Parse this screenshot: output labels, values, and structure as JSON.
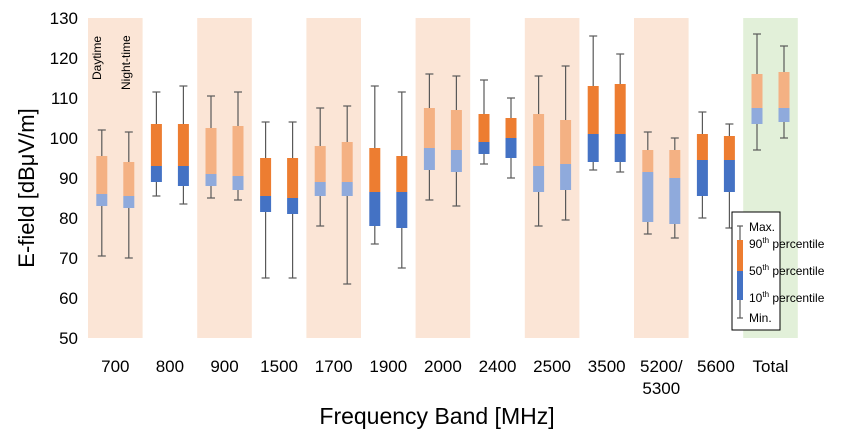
{
  "chart_data": {
    "type": "boxplot",
    "xlabel": "Frequency Band [MHz]",
    "ylabel": "E-field [dBμV/m]",
    "ylim": [
      50,
      130
    ],
    "yticks": [
      50,
      60,
      70,
      80,
      90,
      100,
      110,
      120,
      130
    ],
    "grid": false,
    "series_labels": [
      "Daytime",
      "Night-time"
    ],
    "colors": {
      "upper_dark": "#ED7D31",
      "upper_light": "#F4B183",
      "lower_dark": "#4472C4",
      "lower_light": "#8FAADC",
      "whisker": "#595959",
      "shade_pink": "#FBE5D6",
      "shade_green": "#E2F0D9"
    },
    "groups": [
      {
        "label": "700",
        "shade": "pink",
        "light": true,
        "day": {
          "min": 70.5,
          "p10": 83,
          "p50": 86,
          "p90": 95.5,
          "max": 102
        },
        "night": {
          "min": 70,
          "p10": 82.5,
          "p50": 85.5,
          "p90": 94,
          "max": 101.5
        }
      },
      {
        "label": "800",
        "shade": "none",
        "light": false,
        "day": {
          "min": 85.5,
          "p10": 89,
          "p50": 93,
          "p90": 103.5,
          "max": 111.5
        },
        "night": {
          "min": 83.5,
          "p10": 88,
          "p50": 93,
          "p90": 103.5,
          "max": 113
        }
      },
      {
        "label": "900",
        "shade": "pink",
        "light": true,
        "day": {
          "min": 85,
          "p10": 88,
          "p50": 91,
          "p90": 102.5,
          "max": 110.5
        },
        "night": {
          "min": 84.5,
          "p10": 87,
          "p50": 90.5,
          "p90": 103,
          "max": 111.5
        }
      },
      {
        "label": "1500",
        "shade": "none",
        "light": false,
        "day": {
          "min": 65,
          "p10": 81.5,
          "p50": 85.5,
          "p90": 95,
          "max": 104
        },
        "night": {
          "min": 65,
          "p10": 81,
          "p50": 85,
          "p90": 95,
          "max": 104
        }
      },
      {
        "label": "1700",
        "shade": "pink",
        "light": true,
        "day": {
          "min": 78,
          "p10": 85.5,
          "p50": 89,
          "p90": 98,
          "max": 107.5
        },
        "night": {
          "min": 63.5,
          "p10": 85.5,
          "p50": 89,
          "p90": 99,
          "max": 108
        }
      },
      {
        "label": "1900",
        "shade": "none",
        "light": false,
        "day": {
          "min": 73.5,
          "p10": 78,
          "p50": 86.5,
          "p90": 97.5,
          "max": 113
        },
        "night": {
          "min": 67.5,
          "p10": 77.5,
          "p50": 86.5,
          "p90": 95.5,
          "max": 111.5
        }
      },
      {
        "label": "2000",
        "shade": "pink",
        "light": true,
        "day": {
          "min": 84.5,
          "p10": 92,
          "p50": 97.5,
          "p90": 107.5,
          "max": 116
        },
        "night": {
          "min": 83,
          "p10": 91.5,
          "p50": 97,
          "p90": 107,
          "max": 115.5
        }
      },
      {
        "label": "2400",
        "shade": "none",
        "light": false,
        "day": {
          "min": 93.5,
          "p10": 96,
          "p50": 99,
          "p90": 106,
          "max": 114.5
        },
        "night": {
          "min": 90,
          "p10": 95,
          "p50": 100,
          "p90": 105,
          "max": 110
        }
      },
      {
        "label": "2500",
        "shade": "pink",
        "light": true,
        "day": {
          "min": 78,
          "p10": 86.5,
          "p50": 93,
          "p90": 106,
          "max": 115.5
        },
        "night": {
          "min": 79.5,
          "p10": 87,
          "p50": 93.5,
          "p90": 104.5,
          "max": 118
        }
      },
      {
        "label": "3500",
        "shade": "none",
        "light": false,
        "day": {
          "min": 92,
          "p10": 94,
          "p50": 101,
          "p90": 113,
          "max": 125.5
        },
        "night": {
          "min": 91.5,
          "p10": 94,
          "p50": 101,
          "p90": 113.5,
          "max": 121
        }
      },
      {
        "label": "5200/\n5300",
        "shade": "pink",
        "light": true,
        "day": {
          "min": 76,
          "p10": 79,
          "p50": 91.5,
          "p90": 97,
          "max": 101.5
        },
        "night": {
          "min": 75,
          "p10": 78.5,
          "p50": 90,
          "p90": 97,
          "max": 100
        }
      },
      {
        "label": "5600",
        "shade": "none",
        "light": false,
        "day": {
          "min": 80,
          "p10": 85.5,
          "p50": 94.5,
          "p90": 101,
          "max": 106.5
        },
        "night": {
          "min": 77.5,
          "p10": 86.5,
          "p50": 94.5,
          "p90": 100.5,
          "max": 103.5
        }
      },
      {
        "label": "Total",
        "shade": "green",
        "light": true,
        "day": {
          "min": 97,
          "p10": 103.5,
          "p50": 107.5,
          "p90": 116,
          "max": 126
        },
        "night": {
          "min": 100,
          "p10": 104,
          "p50": 107.5,
          "p90": 116.5,
          "max": 123
        }
      }
    ],
    "legend": {
      "position": "right",
      "items": [
        {
          "text": "Max.",
          "sup": ""
        },
        {
          "text": "90",
          "sup": "th",
          "suffix": " percentile"
        },
        {
          "text": "50",
          "sup": "th",
          "suffix": " percentile"
        },
        {
          "text": "10",
          "sup": "th",
          "suffix": " percentile"
        },
        {
          "text": "Min.",
          "sup": ""
        }
      ]
    }
  }
}
